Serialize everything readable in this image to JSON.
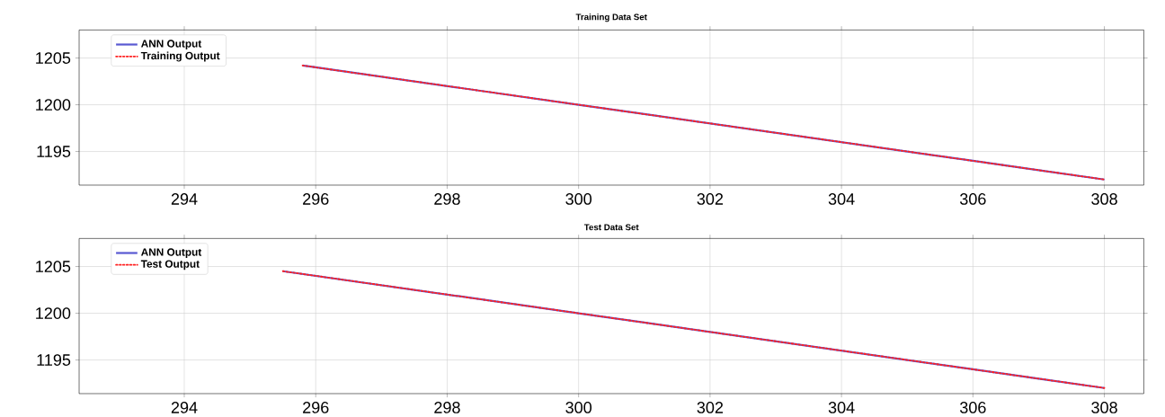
{
  "chart_data": [
    {
      "type": "line",
      "title": "Training Data Set",
      "x": [
        295.8,
        296,
        297,
        298,
        299,
        300,
        301,
        302,
        303,
        304,
        305,
        306,
        307,
        308
      ],
      "series": [
        {
          "name": "ANN Output",
          "color": "#5a5ad2",
          "line_style": "solid",
          "values": [
            1204.2,
            1204,
            1203,
            1202,
            1201,
            1200,
            1199,
            1198,
            1197,
            1196,
            1195,
            1194,
            1193,
            1192
          ]
        },
        {
          "name": "Training Output",
          "color": "#ff2020",
          "line_style": "dotted",
          "values": [
            1204.2,
            1204,
            1203,
            1202,
            1201,
            1200,
            1199,
            1198,
            1197,
            1196,
            1195,
            1194,
            1193,
            1192
          ]
        }
      ],
      "xlim": [
        292.4,
        308.6
      ],
      "ylim": [
        1191.4,
        1208
      ],
      "xticks": [
        294,
        296,
        298,
        300,
        302,
        304,
        306,
        308
      ],
      "yticks": [
        1195,
        1200,
        1205
      ],
      "grid": true,
      "legend": "top left"
    },
    {
      "type": "line",
      "title": "Test Data Set",
      "x": [
        295.5,
        296,
        297,
        298,
        299,
        300,
        301,
        302,
        303,
        304,
        305,
        306,
        307,
        308
      ],
      "series": [
        {
          "name": "ANN Output",
          "color": "#5a5ad2",
          "line_style": "solid",
          "values": [
            1204.5,
            1204,
            1203,
            1202,
            1201,
            1200,
            1199,
            1198,
            1197,
            1196,
            1195,
            1194,
            1193,
            1192
          ]
        },
        {
          "name": "Test Output",
          "color": "#ff2020",
          "line_style": "dotted",
          "values": [
            1204.5,
            1204,
            1203,
            1202,
            1201,
            1200,
            1199,
            1198,
            1197,
            1196,
            1195,
            1194,
            1193,
            1192
          ]
        }
      ],
      "xlim": [
        292.4,
        308.6
      ],
      "ylim": [
        1191.4,
        1208
      ],
      "xticks": [
        294,
        296,
        298,
        300,
        302,
        304,
        306,
        308
      ],
      "yticks": [
        1195,
        1200,
        1205
      ],
      "grid": true,
      "legend": "top left"
    }
  ]
}
